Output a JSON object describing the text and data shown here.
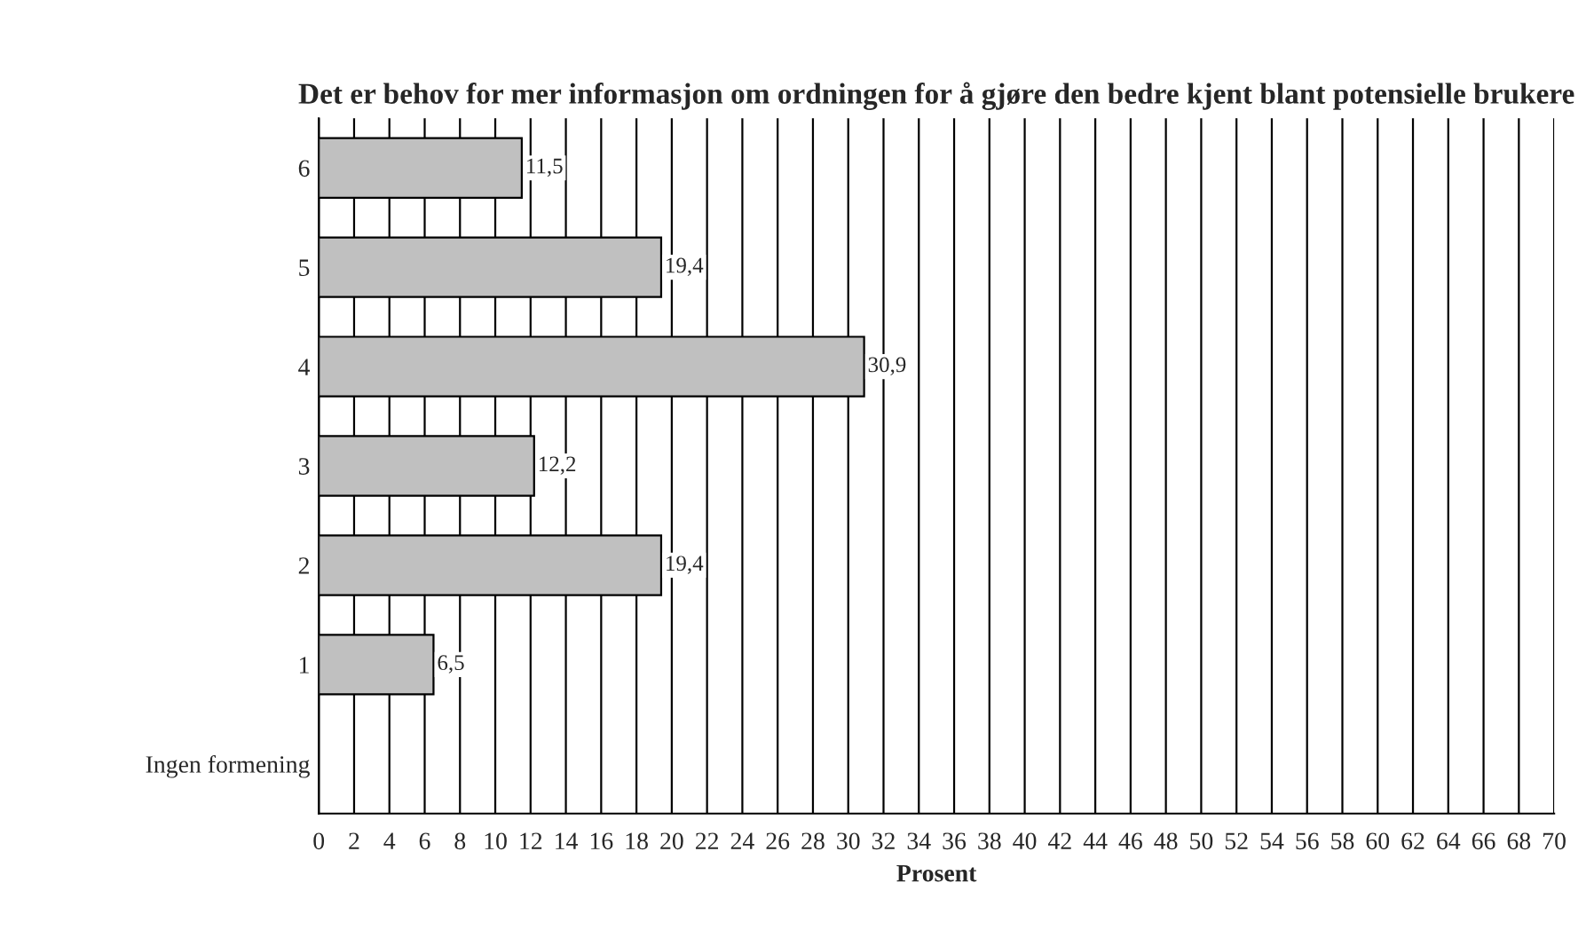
{
  "chart_data": {
    "type": "bar",
    "orientation": "horizontal",
    "title": "Det er behov for mer informasjon om ordningen for å gjøre den bedre kjent blant potensielle brukere",
    "xlabel": "Prosent",
    "categories": [
      "6",
      "5",
      "4",
      "3",
      "2",
      "1",
      "Ingen formening"
    ],
    "values": [
      11.5,
      19.4,
      30.9,
      12.2,
      19.4,
      6.5,
      null
    ],
    "value_labels": [
      "11,5",
      "19,4",
      "30,9",
      "12,2",
      "19,4",
      "6,5",
      null
    ],
    "color": "#c0c0c0",
    "xlim": [
      0,
      70
    ],
    "xticks": [
      0,
      2,
      4,
      6,
      8,
      10,
      12,
      14,
      16,
      18,
      20,
      22,
      24,
      26,
      28,
      30,
      32,
      34,
      36,
      38,
      40,
      42,
      44,
      46,
      48,
      50,
      52,
      54,
      56,
      58,
      60,
      62,
      64,
      66,
      68,
      70
    ],
    "grid": "x"
  }
}
